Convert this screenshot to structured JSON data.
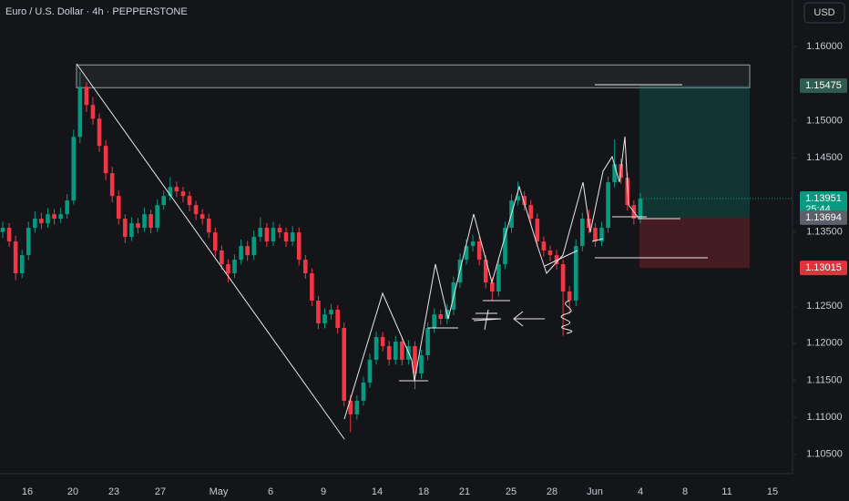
{
  "chart_data": {
    "type": "candlestick",
    "title": "Euro / U.S. Dollar · 4h · PEPPERSTONE",
    "currency_button": "USD",
    "up_color": "#089981",
    "down_color": "#f23645",
    "ylim": [
      1.1024,
      1.1663
    ],
    "yticks": [
      {
        "value": 1.16,
        "label": "1.16000"
      },
      {
        "value": 1.15,
        "label": "1.15000"
      },
      {
        "value": 1.145,
        "label": "1.14500"
      },
      {
        "value": 1.135,
        "label": "1.13500"
      },
      {
        "value": 1.125,
        "label": "1.12500"
      },
      {
        "value": 1.12,
        "label": "1.12000"
      },
      {
        "value": 1.115,
        "label": "1.11500"
      },
      {
        "value": 1.11,
        "label": "1.11000"
      },
      {
        "value": 1.105,
        "label": "1.10500"
      }
    ],
    "x_labels": [
      "16",
      "20",
      "23",
      "27",
      "May",
      "6",
      "9",
      "14",
      "18",
      "21",
      "25",
      "28",
      "Jun",
      "4",
      "8",
      "11",
      "15"
    ],
    "zone": {
      "top": 1.15754,
      "bottom": 1.15447
    },
    "position": {
      "target": 1.15475,
      "entry": 1.13694,
      "stop": 1.13015
    },
    "last_price": 1.13951,
    "countdown": "25:44",
    "ohlc": [
      [
        1.135,
        1.1364,
        1.1342,
        1.13557
      ],
      [
        1.13557,
        1.1362,
        1.133,
        1.13373
      ],
      [
        1.13373,
        1.1345,
        1.1285,
        1.12943
      ],
      [
        1.12943,
        1.1326,
        1.1288,
        1.13188
      ],
      [
        1.13188,
        1.1364,
        1.1312,
        1.13557
      ],
      [
        1.13557,
        1.1378,
        1.1349,
        1.1368
      ],
      [
        1.1368,
        1.1376,
        1.1354,
        1.13618
      ],
      [
        1.13618,
        1.1382,
        1.1356,
        1.13741
      ],
      [
        1.13741,
        1.1381,
        1.136,
        1.1368
      ],
      [
        1.1368,
        1.1383,
        1.1362,
        1.13741
      ],
      [
        1.13741,
        1.1401,
        1.1368,
        1.13925
      ],
      [
        1.13925,
        1.1488,
        1.1387,
        1.14784
      ],
      [
        1.14784,
        1.1566,
        1.147,
        1.1546
      ],
      [
        1.1546,
        1.1552,
        1.1512,
        1.15214
      ],
      [
        1.15214,
        1.1532,
        1.1495,
        1.1503
      ],
      [
        1.1503,
        1.151,
        1.1458,
        1.14662
      ],
      [
        1.14662,
        1.1474,
        1.142,
        1.14293
      ],
      [
        1.14293,
        1.1438,
        1.139,
        1.13986
      ],
      [
        1.13986,
        1.1406,
        1.136,
        1.1368
      ],
      [
        1.1368,
        1.1374,
        1.1335,
        1.13434
      ],
      [
        1.13434,
        1.137,
        1.1338,
        1.13618
      ],
      [
        1.13618,
        1.1369,
        1.1348,
        1.13557
      ],
      [
        1.13557,
        1.1383,
        1.135,
        1.13741
      ],
      [
        1.13741,
        1.138,
        1.1348,
        1.13557
      ],
      [
        1.13557,
        1.1394,
        1.135,
        1.13864
      ],
      [
        1.13864,
        1.1406,
        1.138,
        1.13986
      ],
      [
        1.13986,
        1.1424,
        1.1392,
        1.14109
      ],
      [
        1.14109,
        1.1418,
        1.1397,
        1.14048
      ],
      [
        1.14048,
        1.1411,
        1.139,
        1.13986
      ],
      [
        1.13986,
        1.1405,
        1.1378,
        1.13864
      ],
      [
        1.13864,
        1.1392,
        1.1366,
        1.13741
      ],
      [
        1.13741,
        1.1381,
        1.136,
        1.1368
      ],
      [
        1.1368,
        1.1375,
        1.1342,
        1.13495
      ],
      [
        1.13495,
        1.1356,
        1.1317,
        1.1325
      ],
      [
        1.1325,
        1.1332,
        1.1299,
        1.13066
      ],
      [
        1.13066,
        1.1313,
        1.1282,
        1.12943
      ],
      [
        1.12943,
        1.132,
        1.1288,
        1.13127
      ],
      [
        1.13127,
        1.134,
        1.1306,
        1.13311
      ],
      [
        1.13311,
        1.1338,
        1.1311,
        1.13188
      ],
      [
        1.13188,
        1.1352,
        1.1312,
        1.13434
      ],
      [
        1.13434,
        1.137,
        1.1337,
        1.13557
      ],
      [
        1.13557,
        1.1362,
        1.133,
        1.13373
      ],
      [
        1.13373,
        1.1364,
        1.1331,
        1.13557
      ],
      [
        1.13557,
        1.1361,
        1.1342,
        1.13495
      ],
      [
        1.13495,
        1.1356,
        1.133,
        1.13373
      ],
      [
        1.13373,
        1.1358,
        1.1331,
        1.13495
      ],
      [
        1.13495,
        1.1356,
        1.1305,
        1.13127
      ],
      [
        1.13127,
        1.1319,
        1.1287,
        1.12943
      ],
      [
        1.12943,
        1.1301,
        1.125,
        1.12575
      ],
      [
        1.12575,
        1.1264,
        1.1219,
        1.12268
      ],
      [
        1.12268,
        1.1247,
        1.122,
        1.1239
      ],
      [
        1.1239,
        1.1253,
        1.1232,
        1.12452
      ],
      [
        1.12452,
        1.1251,
        1.1213,
        1.12206
      ],
      [
        1.12206,
        1.1228,
        1.1115,
        1.11224
      ],
      [
        1.11224,
        1.113,
        1.108,
        1.1104
      ],
      [
        1.1104,
        1.113,
        1.1097,
        1.11224
      ],
      [
        1.11224,
        1.1155,
        1.1116,
        1.1147
      ],
      [
        1.1147,
        1.1186,
        1.114,
        1.11777
      ],
      [
        1.11777,
        1.1216,
        1.1171,
        1.12084
      ],
      [
        1.12084,
        1.1215,
        1.1189,
        1.11961
      ],
      [
        1.11961,
        1.1203,
        1.117,
        1.11777
      ],
      [
        1.11777,
        1.121,
        1.1171,
        1.12022
      ],
      [
        1.12022,
        1.1209,
        1.117,
        1.11777
      ],
      [
        1.11777,
        1.1204,
        1.1171,
        1.11961
      ],
      [
        1.11961,
        1.1203,
        1.1138,
        1.11592
      ],
      [
        1.11592,
        1.1191,
        1.1152,
        1.11838
      ],
      [
        1.11838,
        1.1228,
        1.1177,
        1.12206
      ],
      [
        1.12206,
        1.1247,
        1.1214,
        1.1239
      ],
      [
        1.1239,
        1.1245,
        1.1225,
        1.12329
      ],
      [
        1.12329,
        1.1253,
        1.1226,
        1.12452
      ],
      [
        1.12452,
        1.129,
        1.1238,
        1.1282
      ],
      [
        1.1282,
        1.1321,
        1.1275,
        1.13127
      ],
      [
        1.13127,
        1.134,
        1.1306,
        1.13311
      ],
      [
        1.13311,
        1.1346,
        1.1324,
        1.13373
      ],
      [
        1.13373,
        1.1344,
        1.1305,
        1.13127
      ],
      [
        1.13127,
        1.1319,
        1.1274,
        1.1282
      ],
      [
        1.1282,
        1.1289,
        1.1258,
        1.12697
      ],
      [
        1.12697,
        1.1315,
        1.1263,
        1.13066
      ],
      [
        1.13066,
        1.1364,
        1.13,
        1.13557
      ],
      [
        1.13557,
        1.1401,
        1.1349,
        1.13925
      ],
      [
        1.13925,
        1.1418,
        1.1386,
        1.13986
      ],
      [
        1.13986,
        1.1405,
        1.1379,
        1.13864
      ],
      [
        1.13864,
        1.1393,
        1.136,
        1.1368
      ],
      [
        1.1368,
        1.1375,
        1.133,
        1.13373
      ],
      [
        1.13373,
        1.1344,
        1.1317,
        1.1325
      ],
      [
        1.1325,
        1.1332,
        1.1311,
        1.13188
      ],
      [
        1.13188,
        1.1326,
        1.1299,
        1.13066
      ],
      [
        1.13066,
        1.1313,
        1.121,
        1.12697
      ],
      [
        1.12697,
        1.1277,
        1.124,
        1.12575
      ],
      [
        1.12575,
        1.134,
        1.125,
        1.13311
      ],
      [
        1.13311,
        1.1376,
        1.1324,
        1.1368
      ],
      [
        1.1368,
        1.138,
        1.1348,
        1.13557
      ],
      [
        1.13557,
        1.1362,
        1.133,
        1.13373
      ],
      [
        1.13373,
        1.1364,
        1.1331,
        1.13557
      ],
      [
        1.13557,
        1.1425,
        1.1349,
        1.14171
      ],
      [
        1.14171,
        1.1475,
        1.141,
        1.14416
      ],
      [
        1.14416,
        1.1449,
        1.1415,
        1.14232
      ],
      [
        1.14232,
        1.143,
        1.1379,
        1.13864
      ],
      [
        1.13864,
        1.1393,
        1.136,
        1.1368
      ],
      [
        1.1368,
        1.1403,
        1.1362,
        1.13951
      ]
    ]
  }
}
